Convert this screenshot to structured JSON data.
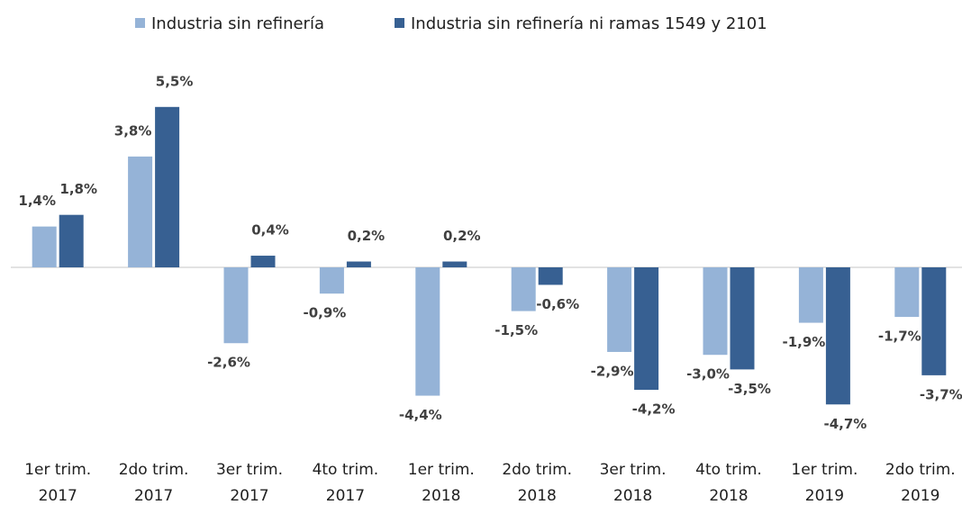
{
  "chart_data": {
    "type": "bar",
    "categories": [
      [
        "1er trim.",
        "2017"
      ],
      [
        "2do trim.",
        "2017"
      ],
      [
        "3er trim.",
        "2017"
      ],
      [
        "4to trim.",
        "2017"
      ],
      [
        "1er trim.",
        "2018"
      ],
      [
        "2do trim.",
        "2018"
      ],
      [
        "3er trim.",
        "2018"
      ],
      [
        "4to trim.",
        "2018"
      ],
      [
        "1er trim.",
        "2019"
      ],
      [
        "2do trim.",
        "2019"
      ]
    ],
    "series": [
      {
        "name": "Industria sin refinería",
        "color": "#95b3d7",
        "values": [
          1.4,
          3.8,
          -2.6,
          -0.9,
          -4.4,
          -1.5,
          -2.9,
          -3.0,
          -1.9,
          -1.7
        ],
        "value_labels": [
          "1,4%",
          "3,8%",
          "-2,6%",
          "-0,9%",
          "-4,4%",
          "-1,5%",
          "-2,9%",
          "-3,0%",
          "-1,9%",
          "-1,7%"
        ]
      },
      {
        "name": "Industria sin refinería ni ramas 1549 y 2101",
        "color": "#376092",
        "values": [
          1.8,
          5.5,
          0.4,
          0.2,
          0.2,
          -0.6,
          -4.2,
          -3.5,
          -4.7,
          -3.7
        ],
        "value_labels": [
          "1,8%",
          "5,5%",
          "0,4%",
          "0,2%",
          "0,2%",
          "-0,6%",
          "-4,2%",
          "-3,5%",
          "-4,7%",
          "-3,7%"
        ]
      }
    ],
    "legend": "top"
  }
}
